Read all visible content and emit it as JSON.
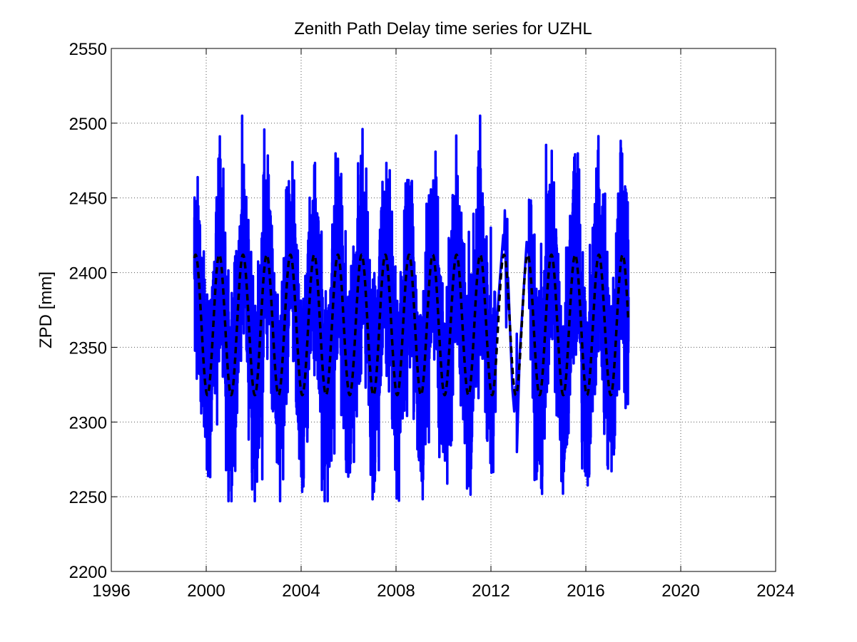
{
  "chart_data": {
    "type": "line",
    "title": "Zenith Path Delay time series for UZHL",
    "xlabel": "",
    "ylabel": "ZPD [mm]",
    "xlim": [
      1996,
      2024
    ],
    "ylim": [
      2200,
      2550
    ],
    "x_ticks": [
      1996,
      2000,
      2004,
      2008,
      2012,
      2016,
      2020,
      2024
    ],
    "y_ticks": [
      2200,
      2250,
      2300,
      2350,
      2400,
      2450,
      2500,
      2550
    ],
    "grid": "dotted",
    "series": [
      {
        "style": "solid",
        "color": "#0000ff",
        "data_start": 1999.5,
        "data_end": 2017.8,
        "gap": [
          2012.2,
          2013.6
        ],
        "seasonal_mean": 2365,
        "seasonal_amplitude": 45,
        "peak_phase_year_fraction": 0.55,
        "observed_max": 2505,
        "observed_min": 2247
      },
      {
        "style": "dashed",
        "color": "#000000",
        "data_start": 1999.5,
        "data_end": 2017.8,
        "seasonal_mean": 2365,
        "seasonal_amplitude": 47,
        "peak_phase_year_fraction": 0.55,
        "peak_value": 2412,
        "trough_value": 2318
      }
    ]
  }
}
